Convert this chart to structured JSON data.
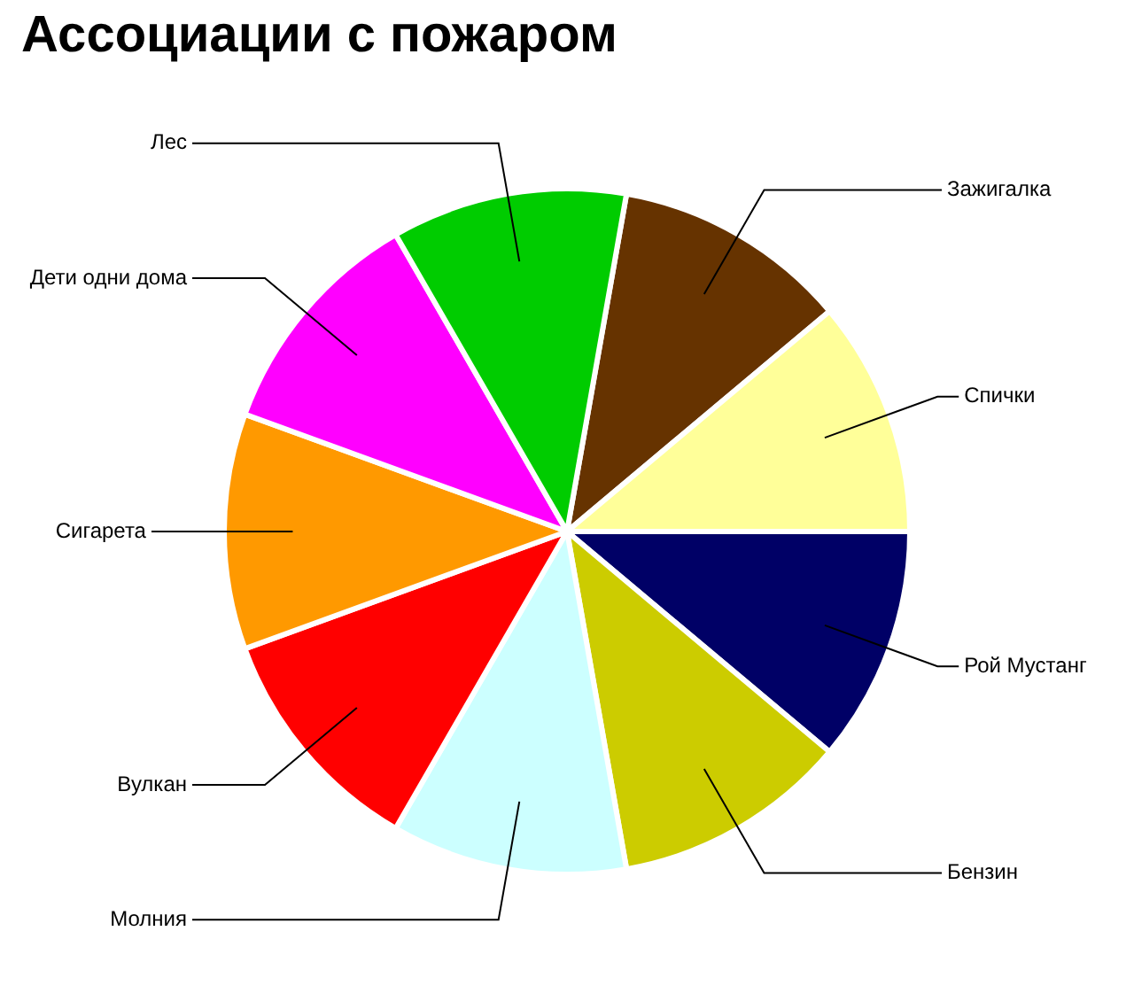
{
  "chart_data": {
    "type": "pie",
    "title": "Ассоциации с пожаром",
    "categories": [
      "Зажигалка",
      "Спички",
      "Рой Мустанг",
      "Бензин",
      "Молния",
      "Вулкан",
      "Сигарета",
      "Дети одни дома",
      "Лес"
    ],
    "values": [
      11.11,
      11.11,
      11.11,
      11.11,
      11.11,
      11.11,
      11.11,
      11.11,
      11.11
    ],
    "colors": [
      "#663300",
      "#ffff99",
      "#000066",
      "#cccc00",
      "#ccffff",
      "#ff0000",
      "#ff9900",
      "#ff00ff",
      "#00cc00"
    ],
    "legend": false
  }
}
